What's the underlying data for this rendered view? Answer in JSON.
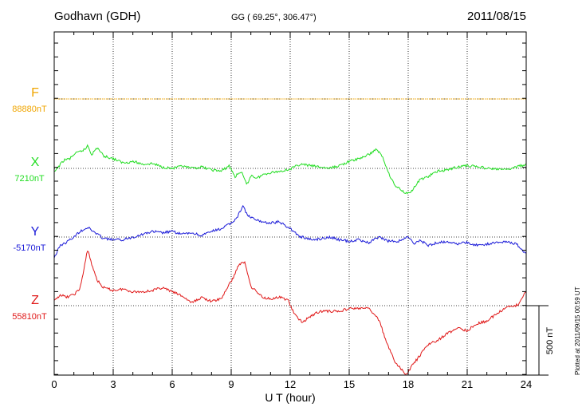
{
  "header": {
    "station": "Godhavn (GDH)",
    "coords": "GG ( 69.25°, 306.47°)",
    "date": "2011/08/15"
  },
  "footer": {
    "plotted_at": "Plotted at 2011/09/15 00:59 UT"
  },
  "chart_data": {
    "type": "line",
    "title": "Godhavn (GDH)",
    "xlabel": "U T (hour)",
    "xlim": [
      0,
      24
    ],
    "x_ticks": [
      0,
      3,
      6,
      9,
      12,
      15,
      18,
      21,
      24
    ],
    "grid": "dotted",
    "scale_bar": {
      "label": "500 nT",
      "value_nT": 500
    },
    "unit": "nT",
    "series": [
      {
        "name": "F",
        "base_label": "88880nT",
        "baseline_nT": 88880,
        "color": "#f0a500",
        "x": [
          0,
          24
        ],
        "y": [
          0,
          0
        ]
      },
      {
        "name": "X",
        "base_label": "7210nT",
        "baseline_nT": 7210,
        "color": "#22dd22",
        "x": [
          0,
          0.2,
          0.5,
          0.8,
          1.0,
          1.3,
          1.6,
          1.7,
          1.9,
          2.2,
          2.5,
          3.0,
          3.5,
          4.0,
          4.5,
          5.0,
          5.5,
          6.0,
          6.5,
          7.0,
          7.5,
          8.0,
          8.5,
          8.9,
          9.2,
          9.5,
          9.8,
          10.0,
          10.3,
          10.7,
          11.0,
          11.5,
          12.0,
          12.5,
          13.0,
          13.5,
          14.0,
          14.5,
          15.0,
          15.5,
          16.0,
          16.4,
          16.7,
          17.0,
          17.3,
          17.6,
          17.9,
          18.2,
          18.6,
          19.0,
          19.5,
          20.0,
          20.5,
          21.0,
          21.5,
          22.0,
          22.5,
          23.0,
          23.5,
          24.0
        ],
        "y": [
          -30,
          10,
          60,
          70,
          100,
          120,
          140,
          170,
          100,
          150,
          90,
          70,
          40,
          50,
          30,
          35,
          10,
          0,
          15,
          0,
          10,
          -10,
          -20,
          20,
          -60,
          -20,
          -120,
          -50,
          -70,
          -40,
          -30,
          -20,
          -5,
          30,
          20,
          10,
          0,
          20,
          50,
          70,
          100,
          140,
          80,
          -30,
          -120,
          -150,
          -180,
          -160,
          -80,
          -60,
          -20,
          -10,
          10,
          20,
          15,
          0,
          -5,
          -10,
          10,
          30
        ]
      },
      {
        "name": "Y",
        "base_label": "-5170nT",
        "baseline_nT": -5170,
        "color": "#1a1ad8",
        "x": [
          0,
          0.3,
          0.6,
          1.0,
          1.3,
          1.7,
          2.0,
          2.5,
          3.0,
          3.5,
          4.0,
          4.5,
          5.0,
          5.5,
          6.0,
          6.5,
          7.0,
          7.5,
          8.0,
          8.5,
          9.0,
          9.3,
          9.6,
          9.8,
          10.0,
          10.3,
          10.6,
          11.0,
          11.4,
          11.8,
          12.1,
          12.4,
          12.8,
          13.2,
          13.6,
          14.0,
          14.5,
          15.0,
          15.5,
          16.0,
          16.5,
          17.0,
          17.5,
          17.8,
          18.0,
          18.3,
          18.6,
          19.0,
          19.5,
          20.0,
          20.5,
          21.0,
          21.5,
          22.0,
          22.5,
          23.0,
          23.5,
          24.0
        ],
        "y": [
          -150,
          -60,
          -40,
          0,
          40,
          70,
          40,
          -10,
          -20,
          -20,
          0,
          20,
          40,
          30,
          40,
          20,
          30,
          10,
          40,
          60,
          100,
          140,
          230,
          160,
          140,
          120,
          110,
          100,
          110,
          80,
          50,
          10,
          -10,
          -20,
          -10,
          0,
          -20,
          -30,
          -20,
          -40,
          0,
          -30,
          -30,
          -10,
          0,
          -50,
          -20,
          -60,
          -40,
          -30,
          -50,
          -40,
          -60,
          -50,
          -40,
          -30,
          -50,
          -120
        ]
      },
      {
        "name": "Z",
        "base_label": "55810nT",
        "baseline_nT": 55810,
        "color": "#e01818",
        "x": [
          0,
          0.3,
          0.6,
          1.0,
          1.3,
          1.5,
          1.7,
          1.9,
          2.2,
          2.5,
          3.0,
          3.5,
          4.0,
          4.5,
          5.0,
          5.5,
          6.0,
          6.5,
          7.0,
          7.5,
          8.0,
          8.5,
          8.8,
          9.1,
          9.4,
          9.7,
          10.0,
          10.3,
          10.6,
          11.0,
          11.5,
          11.9,
          12.2,
          12.6,
          13.0,
          13.5,
          14.0,
          14.5,
          15.0,
          15.5,
          16.0,
          16.5,
          17.0,
          17.3,
          17.6,
          17.9,
          18.2,
          18.6,
          19.0,
          19.5,
          20.0,
          20.5,
          21.0,
          21.5,
          22.0,
          22.5,
          23.0,
          23.3,
          23.6,
          23.9,
          24.0
        ],
        "y": [
          30,
          80,
          60,
          80,
          120,
          250,
          410,
          300,
          180,
          130,
          110,
          120,
          100,
          100,
          110,
          130,
          100,
          70,
          20,
          60,
          30,
          50,
          130,
          200,
          300,
          310,
          140,
          100,
          60,
          50,
          60,
          40,
          -60,
          -120,
          -80,
          -40,
          -40,
          -40,
          -20,
          -20,
          -20,
          -100,
          -300,
          -400,
          -450,
          -500,
          -430,
          -360,
          -280,
          -250,
          -200,
          -160,
          -180,
          -130,
          -110,
          -60,
          -10,
          -10,
          10,
          80,
          110
        ]
      }
    ]
  }
}
